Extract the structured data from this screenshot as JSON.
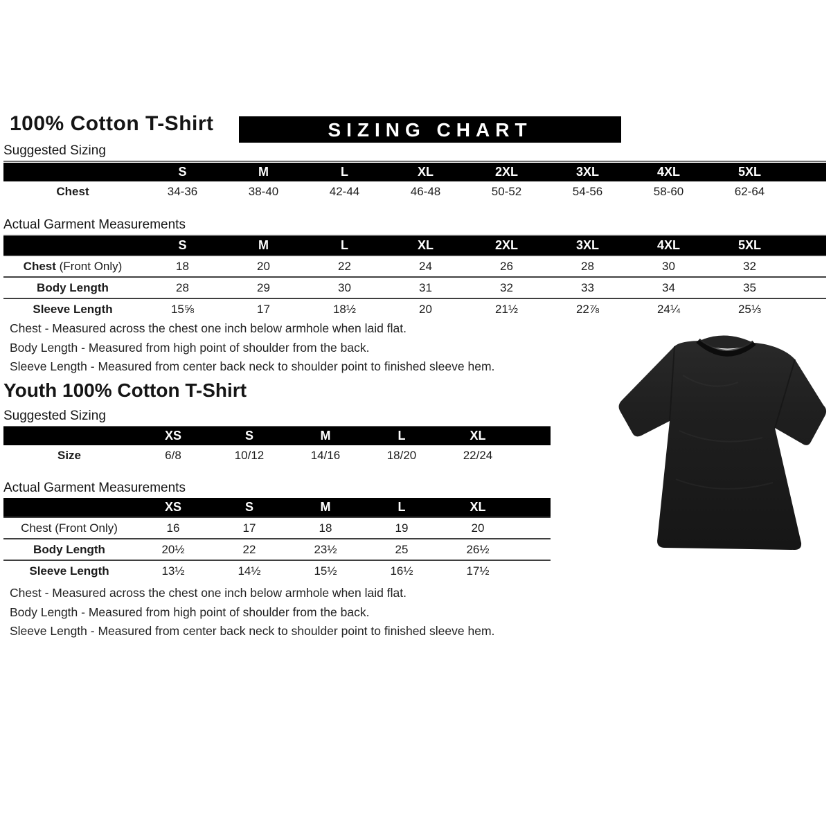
{
  "colors": {
    "header_bar_bg": "#000000",
    "header_bar_text": "#ffffff",
    "tshirt": "#1d1d1d",
    "page_bg": "#ffffff"
  },
  "adult": {
    "title": "100% Cotton T-Shirt",
    "banner": "SIZING CHART",
    "suggested": {
      "heading": "Suggested Sizing",
      "columns": [
        "S",
        "M",
        "L",
        "XL",
        "2XL",
        "3XL",
        "4XL",
        "5XL"
      ],
      "rows": [
        {
          "label": "Chest",
          "suffix": "",
          "bold": true,
          "values": [
            "34-36",
            "38-40",
            "42-44",
            "46-48",
            "50-52",
            "54-56",
            "58-60",
            "62-64"
          ]
        }
      ]
    },
    "actual": {
      "heading": "Actual Garment Measurements",
      "columns": [
        "S",
        "M",
        "L",
        "XL",
        "2XL",
        "3XL",
        "4XL",
        "5XL"
      ],
      "rows": [
        {
          "label": "Chest",
          "suffix": " (Front Only)",
          "bold": true,
          "values": [
            "18",
            "20",
            "22",
            "24",
            "26",
            "28",
            "30",
            "32"
          ]
        },
        {
          "label": "Body Length",
          "suffix": "",
          "bold": true,
          "values": [
            "28",
            "29",
            "30",
            "31",
            "32",
            "33",
            "34",
            "35"
          ]
        },
        {
          "label": "Sleeve Length",
          "suffix": "",
          "bold": true,
          "values": [
            "15⅝",
            "17",
            "18½",
            "20",
            "21½",
            "22⅞",
            "24¼",
            "25⅓"
          ]
        }
      ]
    },
    "notes": [
      "Chest - Measured across the chest one inch below armhole when laid flat.",
      "Body Length - Measured from high point of shoulder from the back.",
      "Sleeve Length - Measured from center back neck to shoulder point to finished sleeve hem."
    ]
  },
  "youth": {
    "title": "Youth 100% Cotton T-Shirt",
    "suggested": {
      "heading": "Suggested Sizing",
      "columns": [
        "XS",
        "S",
        "M",
        "L",
        "XL"
      ],
      "rows": [
        {
          "label": "Size",
          "suffix": "",
          "bold": true,
          "values": [
            "6/8",
            "10/12",
            "14/16",
            "18/20",
            "22/24"
          ]
        }
      ]
    },
    "actual": {
      "heading": "Actual Garment Measurements",
      "columns": [
        "XS",
        "S",
        "M",
        "L",
        "XL"
      ],
      "rows": [
        {
          "label": "Chest",
          "suffix": " (Front Only)",
          "bold": false,
          "values": [
            "16",
            "17",
            "18",
            "19",
            "20"
          ]
        },
        {
          "label": "Body Length",
          "suffix": "",
          "bold": true,
          "values": [
            "20½",
            "22",
            "23½",
            "25",
            "26½"
          ]
        },
        {
          "label": "Sleeve Length",
          "suffix": "",
          "bold": true,
          "values": [
            "13½",
            "14½",
            "15½",
            "16½",
            "17½"
          ]
        }
      ]
    },
    "notes": [
      "Chest - Measured across the chest one inch below armhole when laid flat.",
      "Body Length - Measured from high point of shoulder from the back.",
      "Sleeve Length - Measured from center back neck to shoulder point to finished sleeve hem."
    ]
  },
  "tshirt_image": {
    "description": "black-tshirt-photo"
  }
}
